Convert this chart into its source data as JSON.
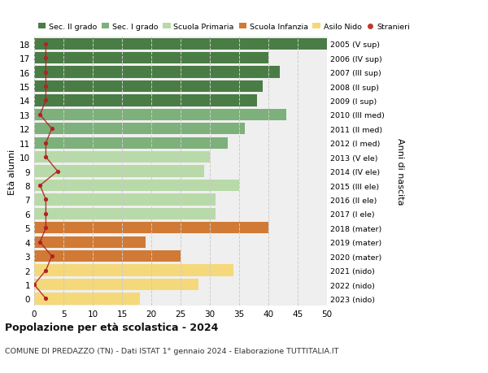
{
  "ages": [
    18,
    17,
    16,
    15,
    14,
    13,
    12,
    11,
    10,
    9,
    8,
    7,
    6,
    5,
    4,
    3,
    2,
    1,
    0
  ],
  "bar_values": [
    50,
    40,
    42,
    39,
    38,
    43,
    36,
    33,
    30,
    29,
    35,
    31,
    31,
    40,
    19,
    25,
    34,
    28,
    18
  ],
  "right_labels": [
    "2005 (V sup)",
    "2006 (IV sup)",
    "2007 (III sup)",
    "2008 (II sup)",
    "2009 (I sup)",
    "2010 (III med)",
    "2011 (II med)",
    "2012 (I med)",
    "2013 (V ele)",
    "2014 (IV ele)",
    "2015 (III ele)",
    "2016 (II ele)",
    "2017 (I ele)",
    "2018 (mater)",
    "2019 (mater)",
    "2020 (mater)",
    "2021 (nido)",
    "2022 (nido)",
    "2023 (nido)"
  ],
  "bar_colors": [
    "#4a7c45",
    "#4a7c45",
    "#4a7c45",
    "#4a7c45",
    "#4a7c45",
    "#7db07a",
    "#7db07a",
    "#7db07a",
    "#b8d9a8",
    "#b8d9a8",
    "#b8d9a8",
    "#b8d9a8",
    "#b8d9a8",
    "#d07a35",
    "#d07a35",
    "#d07a35",
    "#f5d87a",
    "#f5d87a",
    "#f5d87a"
  ],
  "stranieri_values": [
    2,
    2,
    2,
    2,
    2,
    1,
    3,
    2,
    2,
    4,
    1,
    2,
    2,
    2,
    1,
    3,
    2,
    0,
    2
  ],
  "legend_labels": [
    "Sec. II grado",
    "Sec. I grado",
    "Scuola Primaria",
    "Scuola Infanzia",
    "Asilo Nido",
    "Stranieri"
  ],
  "legend_colors": [
    "#4a7c45",
    "#7db07a",
    "#b8d9a8",
    "#d07a35",
    "#f5d87a",
    "#c0392b"
  ],
  "ylabel_left": "Età alunni",
  "ylabel_right": "Anni di nascita",
  "xlim": [
    0,
    50
  ],
  "xticks": [
    0,
    5,
    10,
    15,
    20,
    25,
    30,
    35,
    40,
    45,
    50
  ],
  "title": "Popolazione per età scolastica - 2024",
  "subtitle": "COMUNE DI PREDAZZO (TN) - Dati ISTAT 1° gennaio 2024 - Elaborazione TUTTITALIA.IT",
  "bg_color": "#ffffff",
  "plot_bg": "#efefef",
  "grid_color": "#cccccc",
  "bar_height": 0.82
}
